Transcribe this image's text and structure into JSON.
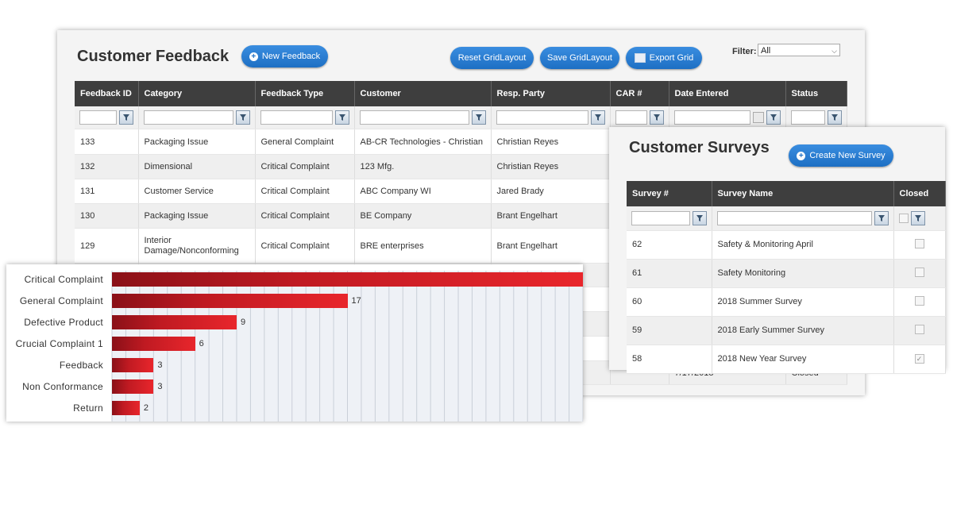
{
  "feedback": {
    "title": "Customer Feedback",
    "new_button": "New Feedback",
    "reset_button": "Reset GridLayout",
    "save_button": "Save GridLayout",
    "export_button": "Export Grid",
    "filter_label": "Filter:",
    "filter_value": "All",
    "columns": [
      "Feedback ID",
      "Category",
      "Feedback Type",
      "Customer",
      "Resp. Party",
      "CAR #",
      "Date Entered",
      "Status"
    ],
    "rows": [
      [
        "133",
        "Packaging Issue",
        "General Complaint",
        "AB-CR Technologies - Christian",
        "Christian Reyes",
        "",
        "",
        ""
      ],
      [
        "132",
        "Dimensional",
        "Critical Complaint",
        "123 Mfg.",
        "Christian Reyes",
        "",
        "",
        ""
      ],
      [
        "131",
        "Customer Service",
        "Critical Complaint",
        "ABC Company WI",
        "Jared Brady",
        "",
        "",
        ""
      ],
      [
        "130",
        "Packaging Issue",
        "Critical Complaint",
        "BE Company",
        "Brant Engelhart",
        "",
        "",
        ""
      ],
      [
        "129",
        "Interior Damage/Nonconforming",
        "Critical Complaint",
        "BRE enterprises",
        "Brant Engelhart",
        "",
        "",
        ""
      ]
    ],
    "last_row": {
      "date": "7/17/2018",
      "status": "Closed"
    }
  },
  "surveys": {
    "title": "Customer Surveys",
    "create_button": "Create New Survey",
    "columns": [
      "Survey #",
      "Survey Name",
      "Closed"
    ],
    "rows": [
      {
        "id": "62",
        "name": "Safety & Monitoring April",
        "closed": false
      },
      {
        "id": "61",
        "name": "Safety Monitoring",
        "closed": false
      },
      {
        "id": "60",
        "name": "2018 Summer Survey",
        "closed": false
      },
      {
        "id": "59",
        "name": "2018 Early Summer Survey",
        "closed": false
      },
      {
        "id": "58",
        "name": "2018 New Year Survey",
        "closed": true
      }
    ]
  },
  "chart_data": {
    "type": "bar",
    "orientation": "horizontal",
    "categories": [
      "Critical Complaint",
      "General Complaint",
      "Defective Product",
      "Crucial Complaint 1",
      "Feedback",
      "Non Conformance",
      "Return"
    ],
    "values": [
      36,
      17,
      9,
      6,
      3,
      3,
      2
    ],
    "value_labels": [
      "",
      "17",
      "9",
      "6",
      "3",
      "3",
      "2"
    ],
    "bar_color": "#e8262c",
    "grid": true
  },
  "colors": {
    "accent": "#1d6fc4",
    "header_bg": "#3e3e3e",
    "bar": "#e8262c"
  }
}
